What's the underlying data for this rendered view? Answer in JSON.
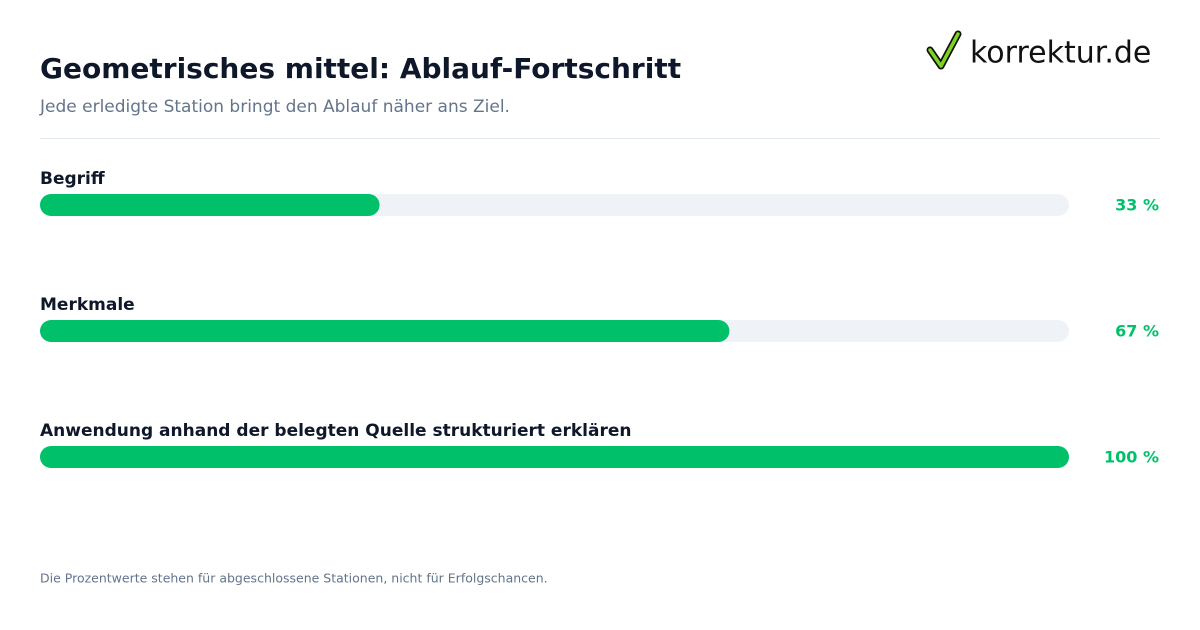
{
  "brand": "korrektur.de",
  "chart_data": {
    "type": "progress",
    "title": "Geometrisches mittel: Ablauf-Fortschritt",
    "subtitle": "Jede erledigte Station bringt den Ablauf näher ans Ziel.",
    "categories": [
      "Begriff",
      "Merkmale",
      "Anwendung anhand der belegten Quelle strukturiert erklären"
    ],
    "values": [
      33,
      67,
      100
    ],
    "value_labels": [
      "33 %",
      "67 %",
      "100 %"
    ],
    "xlim": [
      0,
      100
    ],
    "color": "#00c16a",
    "track_color": "#eff3f8",
    "note": "Die Prozentwerte stehen für abgeschlossene Stationen, nicht für Erfolgschancen."
  }
}
